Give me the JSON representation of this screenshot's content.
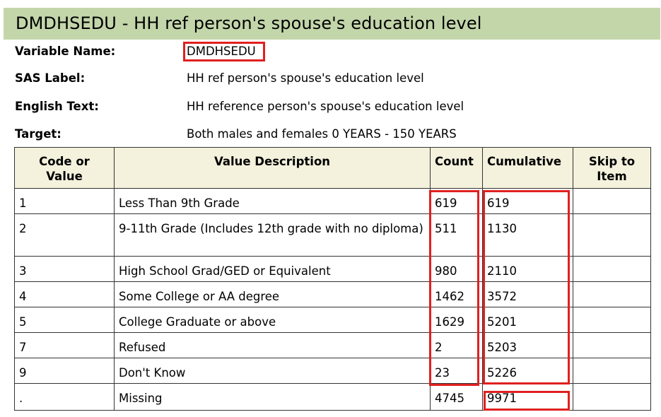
{
  "title": "DMDHSEDU - HH ref person's spouse's education level",
  "meta": {
    "variable_name_label": "Variable Name:",
    "variable_name": "DMDHSEDU",
    "sas_label_label": "SAS Label:",
    "sas_label": "HH ref person's spouse's education level",
    "english_text_label": "English Text:",
    "english_text": "HH reference person's spouse's education level",
    "target_label": "Target:",
    "target": "Both males and females 0 YEARS - 150 YEARS"
  },
  "table": {
    "headers": [
      "Code or Value",
      "Value Description",
      "Count",
      "Cumulative",
      "Skip to Item"
    ],
    "rows": [
      {
        "code": "1",
        "description": "Less Than 9th Grade",
        "count": "619",
        "cumulative": "619",
        "skip": ""
      },
      {
        "code": "2",
        "description": "9-11th Grade (Includes 12th grade with no diploma)",
        "count": "511",
        "cumulative": "1130",
        "skip": ""
      },
      {
        "code": "3",
        "description": "High School Grad/GED or Equivalent",
        "count": "980",
        "cumulative": "2110",
        "skip": ""
      },
      {
        "code": "4",
        "description": "Some College or AA degree",
        "count": "1462",
        "cumulative": "3572",
        "skip": ""
      },
      {
        "code": "5",
        "description": "College Graduate or above",
        "count": "1629",
        "cumulative": "5201",
        "skip": ""
      },
      {
        "code": "7",
        "description": "Refused",
        "count": "2",
        "cumulative": "5203",
        "skip": ""
      },
      {
        "code": "9",
        "description": "Don't Know",
        "count": "23",
        "cumulative": "5226",
        "skip": ""
      },
      {
        "code": ".",
        "description": "Missing",
        "count": "4745",
        "cumulative": "9971",
        "skip": ""
      }
    ]
  },
  "colors": {
    "title_bg": "#c3d6aa",
    "header_bg": "#f4f1dc",
    "highlight": "#e02020"
  }
}
